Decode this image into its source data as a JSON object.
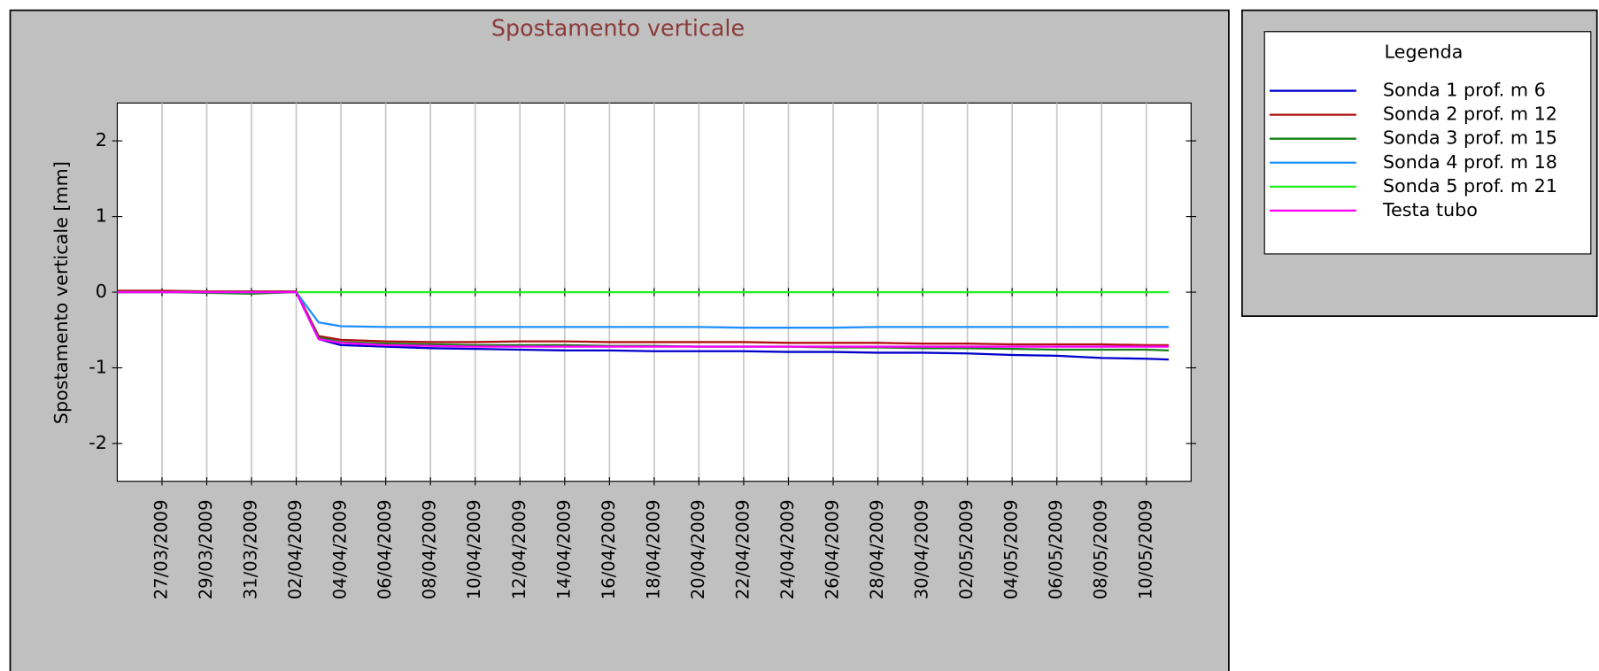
{
  "chart_data": {
    "type": "line",
    "title": "Spostamento verticale",
    "y_label": "Spostamento verticale [mm]",
    "legend_title": "Legenda",
    "x": [
      "25/03/2009",
      "27/03/2009",
      "29/03/2009",
      "31/03/2009",
      "02/04/2009",
      "03/04/2009",
      "04/04/2009",
      "06/04/2009",
      "08/04/2009",
      "10/04/2009",
      "12/04/2009",
      "14/04/2009",
      "16/04/2009",
      "18/04/2009",
      "20/04/2009",
      "22/04/2009",
      "24/04/2009",
      "26/04/2009",
      "28/04/2009",
      "30/04/2009",
      "02/05/2009",
      "04/05/2009",
      "06/05/2009",
      "08/05/2009",
      "10/05/2009",
      "11/05/2009"
    ],
    "series": [
      {
        "name": "Sonda 1 prof. m 6",
        "color": "#0000cc",
        "values": [
          0,
          0,
          0,
          0,
          0,
          -0.62,
          -0.7,
          -0.72,
          -0.74,
          -0.75,
          -0.76,
          -0.77,
          -0.77,
          -0.78,
          -0.78,
          -0.78,
          -0.79,
          -0.79,
          -0.8,
          -0.8,
          -0.81,
          -0.83,
          -0.84,
          -0.87,
          -0.88,
          -0.89
        ]
      },
      {
        "name": "Sonda 2 prof. m 12",
        "color": "#b01010",
        "values": [
          0.02,
          0.02,
          0.01,
          0.01,
          0.01,
          -0.58,
          -0.63,
          -0.65,
          -0.66,
          -0.66,
          -0.65,
          -0.65,
          -0.66,
          -0.66,
          -0.66,
          -0.66,
          -0.67,
          -0.67,
          -0.67,
          -0.68,
          -0.68,
          -0.69,
          -0.69,
          -0.69,
          -0.7,
          -0.7
        ]
      },
      {
        "name": "Sonda 3 prof. m 15",
        "color": "#108010",
        "values": [
          0,
          0,
          -0.01,
          -0.02,
          0,
          -0.6,
          -0.66,
          -0.68,
          -0.69,
          -0.7,
          -0.7,
          -0.7,
          -0.71,
          -0.71,
          -0.72,
          -0.72,
          -0.72,
          -0.73,
          -0.73,
          -0.74,
          -0.74,
          -0.75,
          -0.76,
          -0.76,
          -0.76,
          -0.77
        ]
      },
      {
        "name": "Sonda 4 prof. m 18",
        "color": "#1e90ff",
        "values": [
          0,
          0,
          0,
          0,
          0,
          -0.4,
          -0.45,
          -0.46,
          -0.46,
          -0.46,
          -0.46,
          -0.46,
          -0.46,
          -0.46,
          -0.46,
          -0.47,
          -0.47,
          -0.47,
          -0.46,
          -0.46,
          -0.46,
          -0.46,
          -0.46,
          -0.46,
          -0.46,
          -0.46
        ]
      },
      {
        "name": "Sonda 5 prof. m 21",
        "color": "#22ee22",
        "values": [
          0,
          0,
          0,
          0,
          0,
          0,
          0,
          0,
          0,
          0,
          0,
          0,
          0,
          0,
          0,
          0,
          0,
          0,
          0,
          0,
          0,
          0,
          0,
          0,
          0,
          0
        ]
      },
      {
        "name": "Testa tubo",
        "color": "#ff00ff",
        "values": [
          0,
          0,
          0,
          0,
          0,
          -0.62,
          -0.67,
          -0.7,
          -0.71,
          -0.72,
          -0.72,
          -0.72,
          -0.72,
          -0.72,
          -0.72,
          -0.72,
          -0.72,
          -0.72,
          -0.72,
          -0.72,
          -0.72,
          -0.72,
          -0.72,
          -0.72,
          -0.72,
          -0.72
        ]
      }
    ],
    "xlim": [
      "25/03/2009",
      "12/05/2009"
    ],
    "xticks": [
      "27/03/2009",
      "29/03/2009",
      "31/03/2009",
      "02/04/2009",
      "04/04/2009",
      "06/04/2009",
      "08/04/2009",
      "10/04/2009",
      "12/04/2009",
      "14/04/2009",
      "16/04/2009",
      "18/04/2009",
      "20/04/2009",
      "22/04/2009",
      "24/04/2009",
      "26/04/2009",
      "28/04/2009",
      "30/04/2009",
      "02/05/2009",
      "04/05/2009",
      "06/05/2009",
      "08/05/2009",
      "10/05/2009"
    ],
    "ylim": [
      -2.5,
      2.5
    ],
    "yticks": [
      -2,
      -1,
      0,
      1,
      2
    ],
    "grid": "x"
  }
}
